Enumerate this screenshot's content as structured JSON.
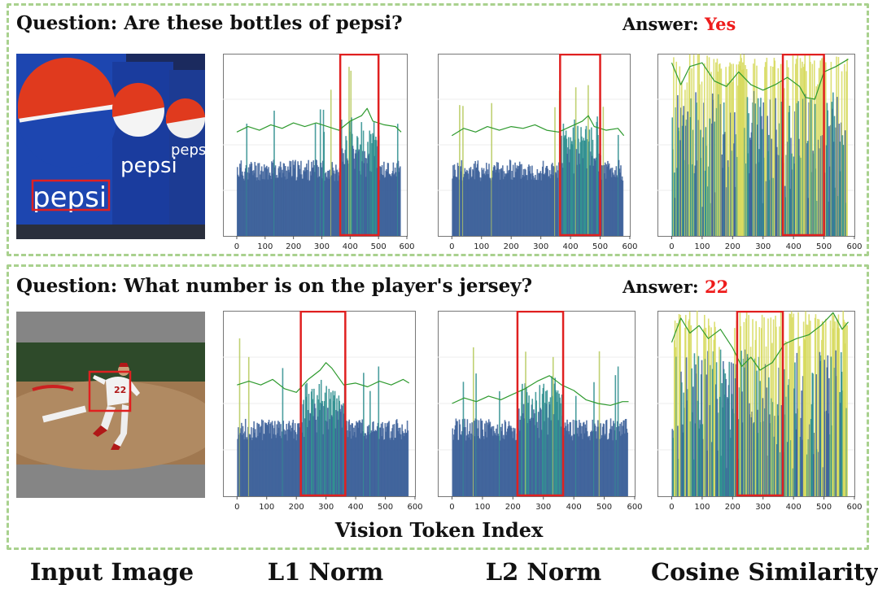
{
  "rows": [
    {
      "question": "Question: Are these bottles of pepsi?",
      "answer_label": "Answer:",
      "answer_value": "Yes",
      "image_text": "pepsi",
      "charts": {
        "l1": {
          "highlight": [
            365,
            500
          ],
          "curve_x": [
            0,
            40,
            80,
            120,
            160,
            200,
            240,
            280,
            320,
            360,
            400,
            440,
            460,
            480,
            520,
            560,
            580
          ],
          "curve_y": [
            0.57,
            0.6,
            0.58,
            0.61,
            0.59,
            0.62,
            0.6,
            0.62,
            0.6,
            0.58,
            0.63,
            0.66,
            0.7,
            0.63,
            0.61,
            0.6,
            0.57
          ]
        },
        "l2": {
          "highlight": [
            365,
            500
          ],
          "curve_x": [
            0,
            40,
            80,
            120,
            160,
            200,
            240,
            280,
            320,
            360,
            400,
            440,
            460,
            480,
            520,
            560,
            580
          ],
          "curve_y": [
            0.55,
            0.59,
            0.57,
            0.6,
            0.58,
            0.6,
            0.59,
            0.61,
            0.58,
            0.57,
            0.6,
            0.63,
            0.66,
            0.6,
            0.58,
            0.59,
            0.55
          ]
        },
        "cos": {
          "highlight": [
            365,
            500
          ],
          "curve_x": [
            0,
            30,
            60,
            100,
            140,
            180,
            220,
            260,
            300,
            340,
            380,
            420,
            440,
            470,
            500,
            540,
            580
          ],
          "curve_y": [
            0.95,
            0.83,
            0.93,
            0.95,
            0.85,
            0.82,
            0.9,
            0.83,
            0.8,
            0.83,
            0.87,
            0.82,
            0.76,
            0.75,
            0.9,
            0.93,
            0.97
          ]
        }
      }
    },
    {
      "question": "Question: What number is on the player's jersey?",
      "answer_label": "Answer:",
      "answer_value": "22",
      "image_text": "22",
      "charts": {
        "l1": {
          "highlight": [
            215,
            365
          ],
          "curve_x": [
            0,
            40,
            80,
            120,
            160,
            200,
            240,
            280,
            300,
            320,
            360,
            400,
            440,
            480,
            520,
            560,
            580
          ],
          "curve_y": [
            0.6,
            0.62,
            0.6,
            0.63,
            0.58,
            0.56,
            0.63,
            0.68,
            0.72,
            0.69,
            0.6,
            0.61,
            0.59,
            0.62,
            0.6,
            0.63,
            0.61
          ]
        },
        "l2": {
          "highlight": [
            215,
            365
          ],
          "curve_x": [
            0,
            40,
            80,
            120,
            160,
            200,
            240,
            280,
            320,
            360,
            400,
            440,
            480,
            520,
            560,
            580
          ],
          "curve_y": [
            0.5,
            0.53,
            0.51,
            0.54,
            0.52,
            0.55,
            0.58,
            0.62,
            0.65,
            0.6,
            0.57,
            0.52,
            0.5,
            0.49,
            0.51,
            0.51
          ]
        },
        "cos": {
          "highlight": [
            215,
            365
          ],
          "curve_x": [
            0,
            30,
            60,
            90,
            120,
            160,
            200,
            230,
            260,
            290,
            330,
            370,
            410,
            450,
            490,
            530,
            560,
            580
          ],
          "curve_y": [
            0.83,
            0.96,
            0.88,
            0.92,
            0.85,
            0.9,
            0.8,
            0.7,
            0.75,
            0.68,
            0.72,
            0.82,
            0.85,
            0.87,
            0.92,
            0.99,
            0.9,
            0.94
          ]
        }
      }
    }
  ],
  "chart_data": [
    {
      "type": "bar",
      "title": "",
      "xlabel": "Vision Token Index",
      "ylabel": "",
      "xlim": [
        0,
        600
      ],
      "xticks": [
        "0",
        "100",
        "200",
        "300",
        "400",
        "500",
        "600"
      ],
      "series": [
        {
          "values_desc": "L1 norm per vision token"
        }
      ]
    },
    {
      "type": "bar",
      "title": "",
      "xlabel": "Vision Token Index",
      "ylabel": "",
      "xlim": [
        0,
        600
      ],
      "xticks": [
        "0",
        "100",
        "200",
        "300",
        "400",
        "500",
        "600"
      ]
    },
    {
      "type": "bar",
      "title": "",
      "xlabel": "Vision Token Index",
      "ylabel": "",
      "xlim": [
        0,
        600
      ],
      "xticks": [
        "0",
        "100",
        "200",
        "300",
        "400",
        "500",
        "600"
      ]
    }
  ],
  "xticks": [
    "0",
    "100",
    "200",
    "300",
    "400",
    "500",
    "600"
  ],
  "x_axis_label": "Vision Token Index",
  "column_labels": {
    "image": "Input Image",
    "l1": "L1 Norm",
    "l2": "L2 Norm",
    "cos": "Cosine Similarity"
  },
  "colors": {
    "panel_border": "#a9d18e",
    "answer": "#ee1c1c",
    "highlight_box": "#e02020",
    "curve": "#2e9a2e",
    "bar_blue": "#3b5f99",
    "bar_teal": "#2b8d8d",
    "bar_yellow": "#d6d95a"
  }
}
